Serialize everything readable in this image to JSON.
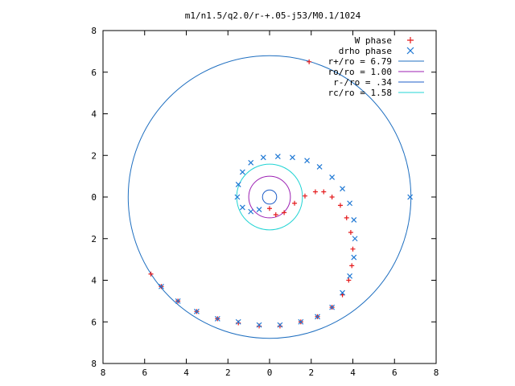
{
  "chart_data": {
    "type": "scatter",
    "title": "m1/n1.5/q2.0/r-+.05-j53/M0.1/1024",
    "xlabel": "",
    "ylabel": "",
    "xlim": [
      -8,
      8
    ],
    "ylim": [
      -8,
      8
    ],
    "x_ticks": [
      -8,
      -6,
      -4,
      -2,
      0,
      2,
      4,
      6,
      8
    ],
    "y_ticks": [
      -8,
      -6,
      -4,
      -2,
      0,
      2,
      4,
      6,
      8
    ],
    "x_tick_labels": [
      "8",
      "6",
      "4",
      "2",
      "0",
      "2",
      "4",
      "6",
      "8"
    ],
    "y_tick_labels": [
      "8",
      "6",
      "4",
      "2",
      "0",
      "2",
      "4",
      "6",
      "8"
    ],
    "grid": false,
    "legend_position": "top-right",
    "series": [
      {
        "name": "W phase",
        "kind": "points",
        "marker": "plus",
        "color": "#e41a1c",
        "points": [
          [
            0.0,
            -0.55
          ],
          [
            0.3,
            -0.85
          ],
          [
            0.7,
            -0.75
          ],
          [
            1.2,
            -0.3
          ],
          [
            1.7,
            0.05
          ],
          [
            2.2,
            0.25
          ],
          [
            2.6,
            0.25
          ],
          [
            3.0,
            0.0
          ],
          [
            3.4,
            -0.4
          ],
          [
            3.7,
            -1.0
          ],
          [
            3.9,
            -1.7
          ],
          [
            4.0,
            -2.5
          ],
          [
            3.95,
            -3.3
          ],
          [
            3.8,
            -4.0
          ],
          [
            3.5,
            -4.7
          ],
          [
            3.0,
            -5.3
          ],
          [
            2.3,
            -5.75
          ],
          [
            1.5,
            -6.0
          ],
          [
            0.5,
            -6.2
          ],
          [
            -0.5,
            -6.2
          ],
          [
            -1.5,
            -6.05
          ],
          [
            -2.5,
            -5.85
          ],
          [
            -3.5,
            -5.5
          ],
          [
            -4.4,
            -5.0
          ],
          [
            -5.2,
            -4.3
          ],
          [
            -5.7,
            -3.7
          ],
          [
            1.9,
            6.5
          ]
        ]
      },
      {
        "name": "drho phase",
        "kind": "points",
        "marker": "cross",
        "color": "#1f78d4",
        "points": [
          [
            -0.5,
            -0.6
          ],
          [
            -0.9,
            -0.7
          ],
          [
            -1.3,
            -0.5
          ],
          [
            -1.55,
            0.0
          ],
          [
            -1.5,
            0.6
          ],
          [
            -1.3,
            1.2
          ],
          [
            -0.9,
            1.65
          ],
          [
            -0.3,
            1.9
          ],
          [
            0.4,
            1.95
          ],
          [
            1.1,
            1.9
          ],
          [
            1.8,
            1.75
          ],
          [
            2.4,
            1.45
          ],
          [
            3.0,
            0.95
          ],
          [
            3.5,
            0.4
          ],
          [
            3.85,
            -0.3
          ],
          [
            4.05,
            -1.1
          ],
          [
            4.1,
            -2.0
          ],
          [
            4.05,
            -2.9
          ],
          [
            3.85,
            -3.8
          ],
          [
            3.5,
            -4.6
          ],
          [
            3.0,
            -5.3
          ],
          [
            2.3,
            -5.75
          ],
          [
            1.5,
            -6.0
          ],
          [
            0.5,
            -6.15
          ],
          [
            -0.5,
            -6.15
          ],
          [
            -1.5,
            -6.0
          ],
          [
            -2.5,
            -5.85
          ],
          [
            -3.5,
            -5.5
          ],
          [
            -4.4,
            -5.0
          ],
          [
            -5.2,
            -4.3
          ],
          [
            6.75,
            0.0
          ]
        ]
      },
      {
        "name": "r+/ro = 6.79",
        "kind": "circle",
        "radius": 6.79,
        "color": "#1f6fc0"
      },
      {
        "name": "ro/ro = 1.00",
        "kind": "circle",
        "radius": 1.0,
        "color": "#9c1fb3"
      },
      {
        "name": "r-/ro = .34",
        "kind": "circle",
        "radius": 0.34,
        "color": "#1f5fc8"
      },
      {
        "name": "rc/ro = 1.58",
        "kind": "circle",
        "radius": 1.58,
        "color": "#21d4d4"
      }
    ]
  }
}
